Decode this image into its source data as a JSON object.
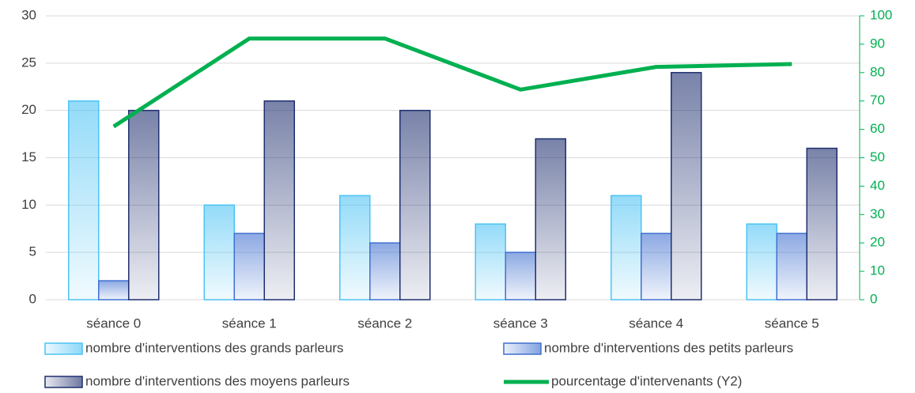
{
  "chart_data": {
    "type": "bar",
    "categories": [
      "séance 0",
      "séance 1",
      "séance 2",
      "séance 3",
      "séance 4",
      "séance 5"
    ],
    "series": [
      {
        "name": "nombre d'interventions des grands parleurs",
        "color": "#4cc3f5",
        "values": [
          21,
          10,
          11,
          8,
          11,
          8
        ]
      },
      {
        "name": "nombre d'interventions des petits parleurs",
        "color": "#3f6fd0",
        "values": [
          2,
          7,
          6,
          5,
          7,
          7
        ]
      },
      {
        "name": "nombre d'interventions des moyens parleurs",
        "color": "#1f2f6f",
        "values": [
          20,
          21,
          20,
          17,
          24,
          16
        ]
      },
      {
        "name": "pourcentage d'intervenants (Y2)",
        "color": "#00b050",
        "type": "line",
        "axis": "y2",
        "values": [
          61,
          92,
          92,
          74,
          82,
          83
        ]
      }
    ],
    "ylim": [
      0,
      30
    ],
    "yticks": [
      0,
      5,
      10,
      15,
      20,
      25,
      30
    ],
    "y2lim": [
      0,
      100
    ],
    "y2ticks": [
      0,
      10,
      20,
      30,
      40,
      50,
      60,
      70,
      80,
      90,
      100
    ],
    "grid": true,
    "legend": "bottom"
  }
}
